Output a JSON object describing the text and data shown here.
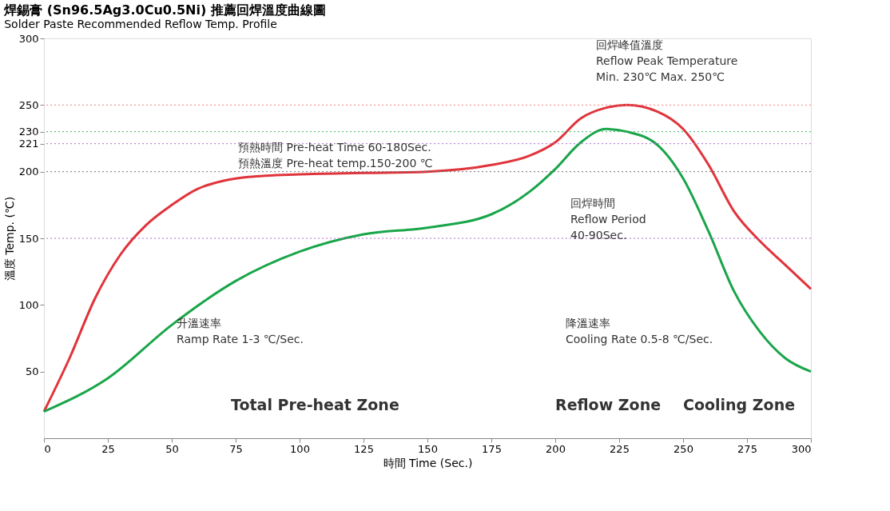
{
  "chart_data": {
    "type": "line",
    "title": "焊錫膏 (Sn96.5Ag3.0Cu0.5Ni) 推薦回焊溫度曲線圖",
    "subtitle": "Solder Paste Recommended Reflow Temp. Profile",
    "xlabel": "時間 Time (Sec.)",
    "ylabel": "溫度 Temp. (℃)",
    "xlim": [
      0,
      300
    ],
    "xticks": [
      0,
      25,
      50,
      75,
      100,
      125,
      150,
      175,
      200,
      225,
      250,
      275,
      300
    ],
    "ylim": [
      0,
      300
    ],
    "yticks": [
      50,
      100,
      150,
      200,
      221,
      230,
      250,
      300
    ],
    "grid": false,
    "marker": "none",
    "line_style": "solid",
    "series": [
      {
        "color": "#e0343c",
        "x": [
          0,
          10,
          20,
          30,
          40,
          50,
          60,
          70,
          80,
          100,
          125,
          150,
          175,
          190,
          200,
          210,
          220,
          228,
          240,
          250,
          260,
          270,
          280,
          290,
          300
        ],
        "values": [
          20,
          60,
          105,
          138,
          160,
          175,
          187,
          193,
          196,
          198,
          199,
          200,
          205,
          212,
          222,
          240,
          248,
          250,
          245,
          232,
          205,
          170,
          148,
          130,
          112
        ]
      },
      {
        "color": "#1aa54a",
        "x": [
          0,
          25,
          50,
          75,
          100,
          125,
          150,
          175,
          190,
          200,
          210,
          220,
          228,
          240,
          250,
          260,
          270,
          280,
          290,
          300
        ],
        "values": [
          20,
          45,
          85,
          118,
          140,
          153,
          158,
          168,
          185,
          202,
          222,
          232,
          230,
          220,
          195,
          155,
          110,
          80,
          60,
          50
        ]
      }
    ],
    "ref_lines": [
      {
        "axis": "y",
        "value": 250,
        "color": "#f08080",
        "line_style": "dotted"
      },
      {
        "axis": "y",
        "value": 230,
        "color": "#40b060",
        "line_style": "dotted"
      },
      {
        "axis": "y",
        "value": 221,
        "color": "#b070d0",
        "line_style": "dotted"
      },
      {
        "axis": "y",
        "value": 200,
        "color": "#707070",
        "line_style": "dotted"
      },
      {
        "axis": "y",
        "value": 150,
        "color": "#b070d0",
        "line_style": "dotted"
      }
    ],
    "annotations": [
      "回焊峰值溫度\nReflow Peak Temperature\nMin. 230℃ Max. 250℃",
      "預熱時間 Pre-heat Time 60-180Sec.\n預熱溫度 Pre-heat temp.150-200 ℃",
      "回焊時間\nReflow Period\n40-90Sec.",
      "升溫速率\nRamp Rate 1-3 ℃/Sec.",
      "降溫速率\nCooling Rate 0.5-8 ℃/Sec.",
      "Total Pre-heat Zone",
      "Reflow Zone",
      "Cooling Zone"
    ]
  }
}
